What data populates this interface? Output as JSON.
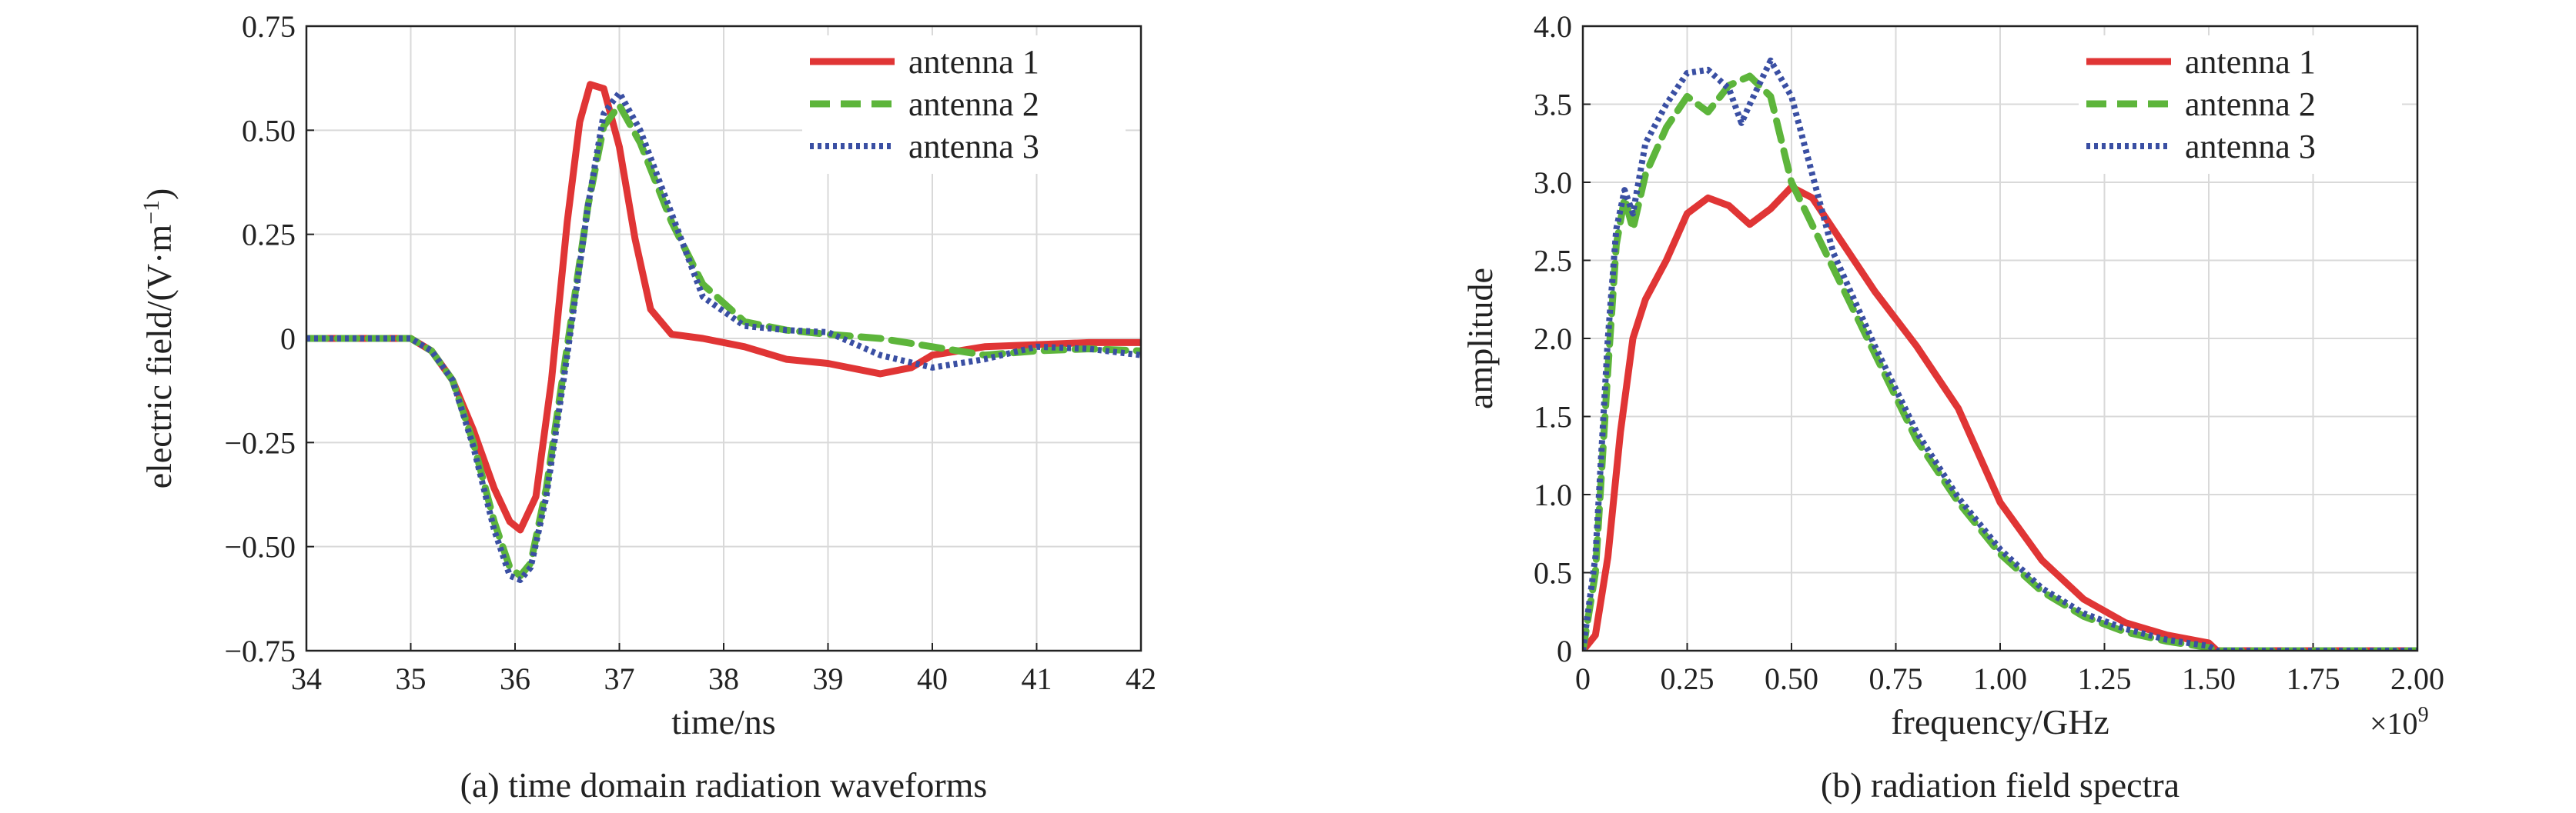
{
  "chart_data": [
    {
      "type": "line",
      "caption": "(a) time domain radiation waveforms",
      "xlabel": "time/ns",
      "ylabel": "electric field/(V·m",
      "ylabel_superscript": "−1",
      "ylabel_close": ")",
      "xlim": [
        34,
        42
      ],
      "ylim": [
        -0.75,
        0.75
      ],
      "xticks": [
        34,
        35,
        36,
        37,
        38,
        39,
        40,
        41,
        42
      ],
      "xtick_labels": [
        "34",
        "35",
        "36",
        "37",
        "38",
        "39",
        "40",
        "41",
        "42"
      ],
      "yticks": [
        -0.75,
        -0.5,
        -0.25,
        0,
        0.25,
        0.5,
        0.75
      ],
      "ytick_labels": [
        "−0.75",
        "−0.50",
        "−0.25",
        "0",
        "0.25",
        "0.50",
        "0.75"
      ],
      "grid": true,
      "legend_position": "top-right",
      "series": [
        {
          "name": "antenna 1",
          "color": "#e03535",
          "style": "solid",
          "x": [
            34,
            35,
            35.2,
            35.4,
            35.6,
            35.8,
            35.95,
            36.05,
            36.2,
            36.35,
            36.5,
            36.62,
            36.72,
            36.85,
            37,
            37.15,
            37.3,
            37.5,
            37.8,
            38.2,
            38.6,
            39,
            39.5,
            39.8,
            40,
            40.5,
            41,
            41.5,
            42
          ],
          "y": [
            0,
            0,
            -0.03,
            -0.1,
            -0.22,
            -0.36,
            -0.44,
            -0.46,
            -0.38,
            -0.1,
            0.28,
            0.52,
            0.61,
            0.6,
            0.46,
            0.24,
            0.07,
            0.01,
            0,
            -0.02,
            -0.05,
            -0.06,
            -0.085,
            -0.07,
            -0.04,
            -0.02,
            -0.015,
            -0.01,
            -0.01
          ]
        },
        {
          "name": "antenna 2",
          "color": "#5db53b",
          "style": "dashed",
          "x": [
            34,
            35,
            35.2,
            35.4,
            35.6,
            35.8,
            35.95,
            36.05,
            36.15,
            36.3,
            36.5,
            36.7,
            36.85,
            37,
            37.2,
            37.5,
            37.8,
            38.2,
            38.6,
            39,
            39.5,
            40,
            40.5,
            41,
            41.5,
            42
          ],
          "y": [
            0,
            0,
            -0.03,
            -0.1,
            -0.25,
            -0.44,
            -0.55,
            -0.57,
            -0.54,
            -0.36,
            -0.02,
            0.32,
            0.51,
            0.56,
            0.47,
            0.28,
            0.13,
            0.04,
            0.02,
            0.01,
            0,
            -0.02,
            -0.04,
            -0.03,
            -0.025,
            -0.03
          ]
        },
        {
          "name": "antenna 3",
          "color": "#3a4fa3",
          "style": "dotted",
          "x": [
            34,
            35,
            35.2,
            35.4,
            35.6,
            35.8,
            35.95,
            36.05,
            36.15,
            36.3,
            36.5,
            36.7,
            36.85,
            37,
            37.2,
            37.5,
            37.8,
            38.2,
            38.6,
            39,
            39.5,
            40,
            40.5,
            41,
            41.5,
            42
          ],
          "y": [
            0,
            0,
            -0.03,
            -0.1,
            -0.26,
            -0.46,
            -0.57,
            -0.58,
            -0.55,
            -0.38,
            -0.04,
            0.32,
            0.54,
            0.59,
            0.5,
            0.3,
            0.1,
            0.03,
            0.02,
            0.015,
            -0.04,
            -0.07,
            -0.05,
            -0.02,
            -0.025,
            -0.04
          ]
        }
      ]
    },
    {
      "type": "line",
      "caption": "(b) radiation field spectra",
      "xlabel": "frequency/GHz",
      "ylabel": "amplitude",
      "x_multiplier_base": "×10",
      "x_multiplier_exponent": "9",
      "xlim": [
        0,
        2.0
      ],
      "ylim": [
        0,
        4.0
      ],
      "xticks": [
        0,
        0.25,
        0.5,
        0.75,
        1.0,
        1.25,
        1.5,
        1.75,
        2.0
      ],
      "xtick_labels": [
        "0",
        "0.25",
        "0.50",
        "0.75",
        "1.00",
        "1.25",
        "1.50",
        "1.75",
        "2.00"
      ],
      "yticks": [
        0,
        0.5,
        1.0,
        1.5,
        2.0,
        2.5,
        3.0,
        3.5,
        4.0
      ],
      "ytick_labels": [
        "0",
        "0.5",
        "1.0",
        "1.5",
        "2.0",
        "2.5",
        "3.0",
        "3.5",
        "4.0"
      ],
      "grid": true,
      "legend_position": "top-right",
      "series": [
        {
          "name": "antenna 1",
          "color": "#e03535",
          "style": "solid",
          "x": [
            0,
            0.03,
            0.06,
            0.09,
            0.12,
            0.15,
            0.2,
            0.25,
            0.3,
            0.35,
            0.4,
            0.45,
            0.5,
            0.55,
            0.6,
            0.7,
            0.8,
            0.9,
            1.0,
            1.1,
            1.2,
            1.3,
            1.4,
            1.5,
            1.52,
            1.6,
            1.75,
            2.0
          ],
          "y": [
            0,
            0.1,
            0.6,
            1.4,
            2.0,
            2.25,
            2.5,
            2.8,
            2.9,
            2.85,
            2.73,
            2.83,
            2.97,
            2.9,
            2.7,
            2.3,
            1.95,
            1.55,
            0.95,
            0.58,
            0.33,
            0.18,
            0.1,
            0.05,
            0,
            0,
            0,
            0
          ]
        },
        {
          "name": "antenna 2",
          "color": "#5db53b",
          "style": "dashed",
          "x": [
            0,
            0.03,
            0.06,
            0.08,
            0.1,
            0.12,
            0.15,
            0.2,
            0.25,
            0.3,
            0.35,
            0.4,
            0.45,
            0.5,
            0.6,
            0.7,
            0.8,
            0.9,
            1.0,
            1.1,
            1.2,
            1.3,
            1.4,
            1.5,
            1.52,
            1.6,
            1.75,
            2.0
          ],
          "y": [
            0,
            0.5,
            1.8,
            2.6,
            2.9,
            2.7,
            3.05,
            3.35,
            3.55,
            3.45,
            3.62,
            3.68,
            3.55,
            3.0,
            2.45,
            1.9,
            1.35,
            0.95,
            0.62,
            0.38,
            0.22,
            0.12,
            0.06,
            0.02,
            0,
            0,
            0,
            0
          ]
        },
        {
          "name": "antenna 3",
          "color": "#3a4fa3",
          "style": "dotted",
          "x": [
            0,
            0.03,
            0.06,
            0.08,
            0.1,
            0.12,
            0.15,
            0.2,
            0.25,
            0.3,
            0.35,
            0.38,
            0.4,
            0.45,
            0.5,
            0.6,
            0.7,
            0.8,
            0.9,
            1.0,
            1.1,
            1.2,
            1.3,
            1.4,
            1.5,
            1.52,
            1.6,
            1.75,
            2.0
          ],
          "y": [
            0,
            0.6,
            2.0,
            2.7,
            2.95,
            2.8,
            3.25,
            3.5,
            3.7,
            3.72,
            3.6,
            3.38,
            3.5,
            3.78,
            3.55,
            2.55,
            1.95,
            1.4,
            0.98,
            0.65,
            0.4,
            0.24,
            0.14,
            0.07,
            0.03,
            0,
            0,
            0,
            0
          ]
        }
      ]
    }
  ]
}
